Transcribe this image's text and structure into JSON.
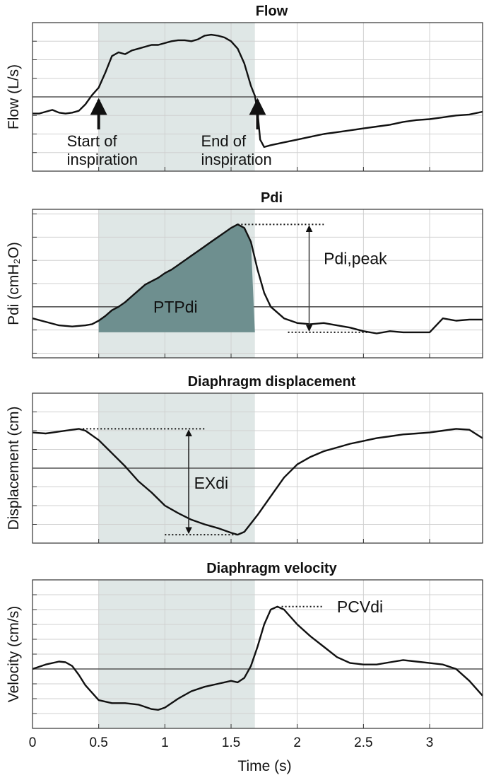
{
  "chart_data": {
    "type": "line",
    "x_axis": {
      "label": "Time (s)",
      "range": [
        0,
        3.4
      ],
      "ticks": [
        0,
        0.5,
        1,
        1.5,
        2,
        2.5,
        3
      ],
      "tick_labels": [
        "0",
        "0.5",
        "1",
        "1.5",
        "2",
        "2.5",
        "3"
      ]
    },
    "inspiration_window": {
      "start": 0.5,
      "end": 1.68
    },
    "colors": {
      "line": "#111111",
      "shade": "#dfe7e6",
      "area_fill": "#6e8f8f",
      "grid": "#d0d0d0",
      "zero_line": "#555555"
    },
    "panels": [
      {
        "id": "flow",
        "title": "Flow",
        "ylabel": "Flow (L/s)",
        "ylim": [
          -4,
          4
        ],
        "grid_step": 1,
        "zero": 0,
        "x": [
          0,
          0.05,
          0.1,
          0.15,
          0.2,
          0.25,
          0.3,
          0.35,
          0.4,
          0.45,
          0.5,
          0.55,
          0.6,
          0.65,
          0.7,
          0.75,
          0.8,
          0.85,
          0.9,
          0.95,
          1.0,
          1.05,
          1.1,
          1.15,
          1.2,
          1.25,
          1.3,
          1.35,
          1.4,
          1.45,
          1.5,
          1.55,
          1.6,
          1.65,
          1.68,
          1.7,
          1.72,
          1.75,
          1.8,
          1.9,
          2.0,
          2.1,
          2.2,
          2.3,
          2.4,
          2.5,
          2.6,
          2.7,
          2.8,
          2.9,
          3.0,
          3.1,
          3.2,
          3.3,
          3.4
        ],
        "y": [
          -0.9,
          -0.9,
          -0.8,
          -0.7,
          -0.85,
          -0.9,
          -0.85,
          -0.75,
          -0.4,
          0.1,
          0.5,
          1.3,
          2.2,
          2.4,
          2.3,
          2.5,
          2.6,
          2.7,
          2.8,
          2.8,
          2.9,
          3.0,
          3.05,
          3.05,
          3.0,
          3.1,
          3.3,
          3.35,
          3.3,
          3.2,
          3.0,
          2.6,
          1.8,
          0.6,
          0.05,
          -0.8,
          -2.3,
          -2.7,
          -2.6,
          -2.45,
          -2.3,
          -2.15,
          -2.0,
          -1.9,
          -1.8,
          -1.7,
          -1.6,
          -1.5,
          -1.35,
          -1.25,
          -1.2,
          -1.1,
          -1.0,
          -0.95,
          -0.8
        ],
        "arrows": [
          {
            "x": 0.5,
            "label_lines": [
              "Start of",
              "inspiration"
            ]
          },
          {
            "x": 1.7,
            "label_lines": [
              "End of",
              "inspiration"
            ]
          }
        ]
      },
      {
        "id": "pdi",
        "title": "Pdi",
        "ylabel": "Pdi (cmH₂O)",
        "ylim": [
          -2.2,
          4.2
        ],
        "grid_step": 1,
        "zero": 0,
        "x": [
          0,
          0.1,
          0.2,
          0.3,
          0.4,
          0.45,
          0.5,
          0.55,
          0.6,
          0.65,
          0.7,
          0.75,
          0.8,
          0.85,
          0.9,
          0.95,
          1.0,
          1.05,
          1.1,
          1.15,
          1.2,
          1.25,
          1.3,
          1.35,
          1.4,
          1.45,
          1.5,
          1.55,
          1.6,
          1.65,
          1.7,
          1.75,
          1.8,
          1.9,
          2.0,
          2.1,
          2.2,
          2.3,
          2.4,
          2.5,
          2.6,
          2.7,
          2.8,
          2.9,
          3.0,
          3.1,
          3.2,
          3.3,
          3.4
        ],
        "y": [
          -0.5,
          -0.65,
          -0.8,
          -0.85,
          -0.8,
          -0.75,
          -0.6,
          -0.4,
          -0.15,
          0.0,
          0.2,
          0.45,
          0.7,
          0.95,
          1.1,
          1.25,
          1.45,
          1.6,
          1.8,
          2.0,
          2.2,
          2.4,
          2.6,
          2.8,
          3.0,
          3.2,
          3.4,
          3.55,
          3.4,
          2.8,
          1.6,
          0.6,
          0.0,
          -0.5,
          -0.7,
          -0.75,
          -0.7,
          -0.8,
          -0.9,
          -1.05,
          -1.15,
          -1.05,
          -1.1,
          -1.1,
          -1.1,
          -0.5,
          -0.6,
          -0.55,
          -0.55
        ],
        "area_label": "PTPdi",
        "peak_label": "Pdi,peak",
        "peak_top": 3.55,
        "peak_base": -1.1,
        "area_base": -1.1
      },
      {
        "id": "disp",
        "title": "Diaphragm displacement",
        "ylabel": "Displacement (cm)",
        "ylim": [
          -4,
          4
        ],
        "grid_step": 1,
        "zero": 0,
        "x": [
          0,
          0.1,
          0.2,
          0.3,
          0.35,
          0.4,
          0.5,
          0.6,
          0.7,
          0.8,
          0.9,
          1.0,
          1.1,
          1.2,
          1.3,
          1.4,
          1.5,
          1.55,
          1.6,
          1.7,
          1.8,
          1.9,
          2.0,
          2.1,
          2.2,
          2.3,
          2.4,
          2.5,
          2.6,
          2.7,
          2.8,
          2.9,
          3.0,
          3.1,
          3.2,
          3.3,
          3.4
        ],
        "y": [
          1.9,
          1.85,
          1.95,
          2.05,
          2.1,
          2.0,
          1.5,
          0.8,
          0.1,
          -0.7,
          -1.3,
          -2.0,
          -2.4,
          -2.75,
          -3.0,
          -3.2,
          -3.45,
          -3.55,
          -3.4,
          -2.5,
          -1.5,
          -0.5,
          0.2,
          0.6,
          0.9,
          1.1,
          1.3,
          1.45,
          1.6,
          1.7,
          1.8,
          1.85,
          1.9,
          2.0,
          2.1,
          2.05,
          1.6
        ],
        "exdi_label": "EXdi",
        "exdi_top": 2.1,
        "exdi_bottom": -3.55
      },
      {
        "id": "vel",
        "title": "Diaphragm velocity",
        "ylabel": "Velocity (cm/s)",
        "ylim": [
          -4,
          6
        ],
        "grid_step": 1,
        "zero": 0,
        "x": [
          0,
          0.1,
          0.2,
          0.25,
          0.3,
          0.35,
          0.4,
          0.5,
          0.6,
          0.7,
          0.8,
          0.9,
          0.95,
          1.0,
          1.1,
          1.2,
          1.3,
          1.4,
          1.5,
          1.55,
          1.6,
          1.65,
          1.7,
          1.75,
          1.8,
          1.85,
          1.9,
          2.0,
          2.1,
          2.2,
          2.3,
          2.4,
          2.5,
          2.6,
          2.7,
          2.8,
          2.9,
          3.0,
          3.1,
          3.2,
          3.3,
          3.4
        ],
        "y": [
          0.0,
          0.3,
          0.5,
          0.45,
          0.2,
          -0.4,
          -1.1,
          -2.1,
          -2.3,
          -2.3,
          -2.4,
          -2.7,
          -2.75,
          -2.6,
          -2.0,
          -1.5,
          -1.2,
          -1.0,
          -0.8,
          -0.9,
          -0.6,
          0.2,
          1.5,
          3.0,
          4.0,
          4.2,
          4.0,
          3.0,
          2.2,
          1.5,
          0.8,
          0.4,
          0.3,
          0.3,
          0.45,
          0.6,
          0.5,
          0.4,
          0.3,
          0.0,
          -0.8,
          -1.8
        ],
        "peak_label": "PCVdi",
        "peak_x": 1.85,
        "peak_y": 4.2
      }
    ]
  }
}
